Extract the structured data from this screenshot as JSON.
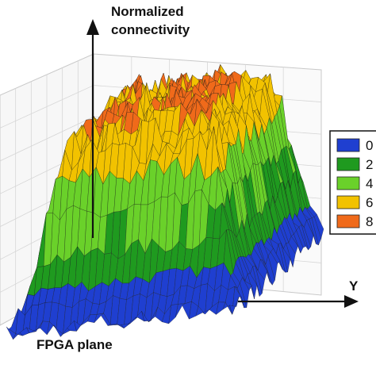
{
  "chart_data": {
    "type": "surface",
    "z_label_line1": "Normalized",
    "z_label_line2": "connectivity",
    "y_label": "Y",
    "plane_label": "FPGA plane",
    "legend": {
      "entries": [
        {
          "label": "0",
          "color": "#1f3fd0"
        },
        {
          "label": "2",
          "color": "#1f9a1f"
        },
        {
          "label": "4",
          "color": "#6ad12a"
        },
        {
          "label": "6",
          "color": "#f2c200"
        },
        {
          "label": "8",
          "color": "#f06a1a"
        }
      ]
    },
    "colormap": [
      "#1f3fd0",
      "#1f9a1f",
      "#6ad12a",
      "#f2c200",
      "#f06a1a",
      "#e8301a"
    ],
    "surface_shape": "plateau",
    "z_range": [
      0,
      1
    ]
  }
}
